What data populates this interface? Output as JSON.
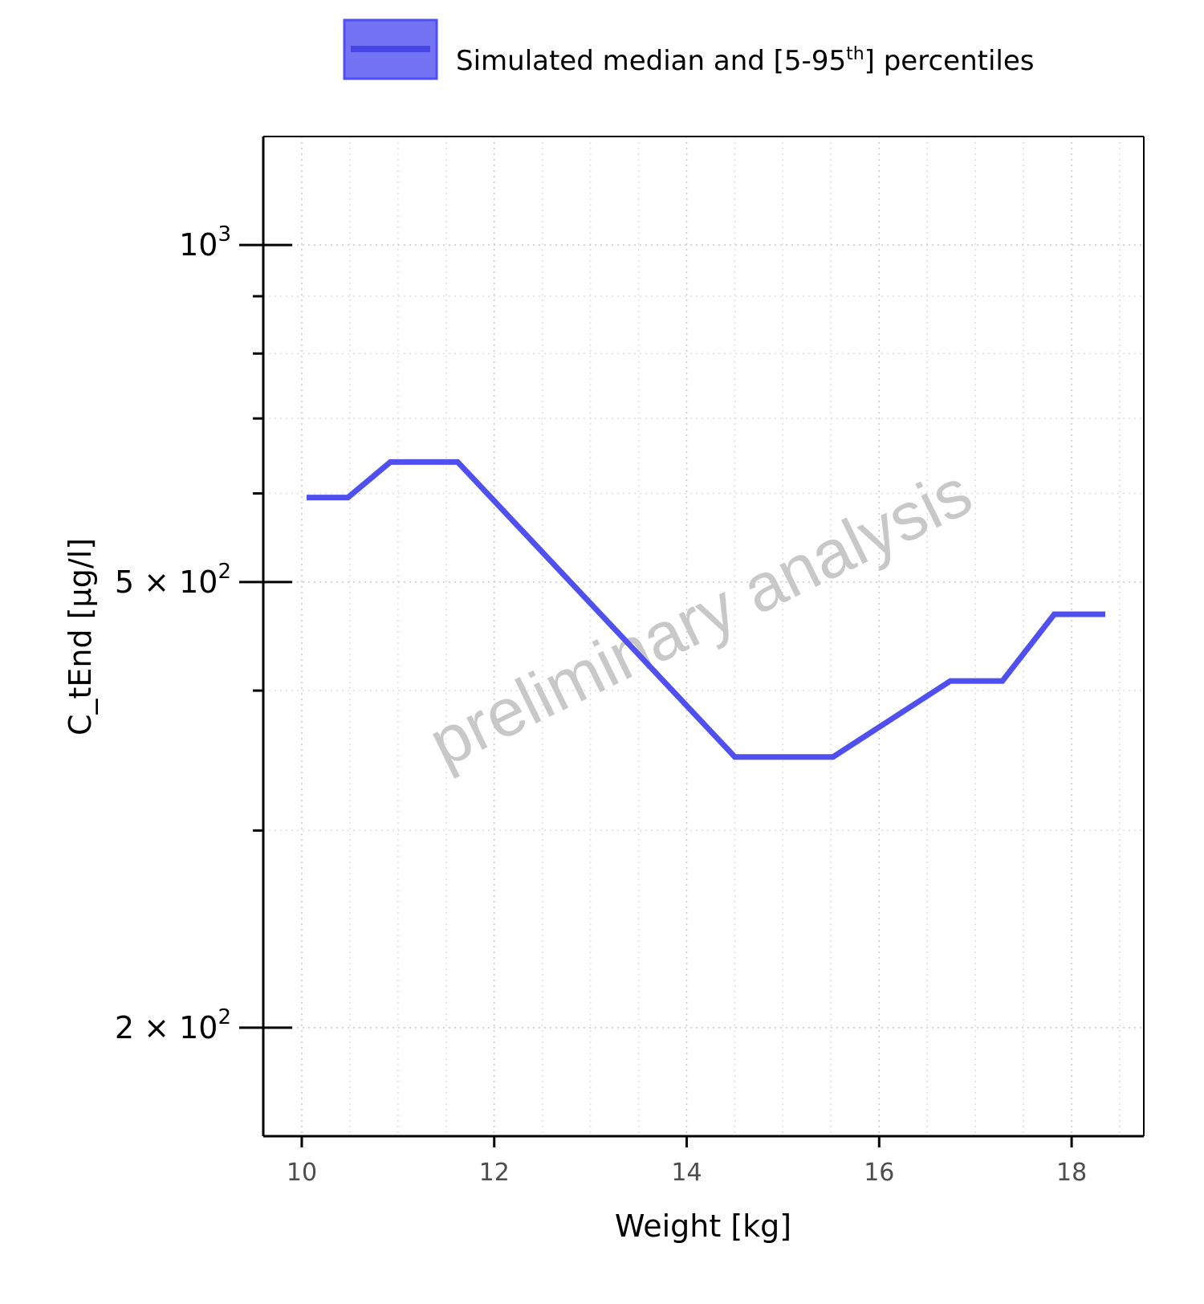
{
  "chart_data": {
    "type": "line",
    "xlabel": "Weight [kg]",
    "ylabel": "C_tEnd [µg/l]",
    "xlim": [
      9.6,
      18.75
    ],
    "ylim": [
      160,
      1250
    ],
    "y_scale": "log",
    "grid": true,
    "x_ticks": [
      10,
      12,
      14,
      16,
      18
    ],
    "y_ticks": [
      {
        "value": 200,
        "mantissa": "2",
        "base": "10",
        "exp": "2"
      },
      {
        "value": 500,
        "mantissa": "5",
        "base": "10",
        "exp": "2"
      },
      {
        "value": 1000,
        "mantissa": "",
        "base": "10",
        "exp": "3"
      }
    ],
    "legend": {
      "position": "top",
      "prefix": "Simulated median and [5-95",
      "superscript": "th",
      "suffix": "] percentiles"
    },
    "series": [
      {
        "color": "#5050f0",
        "x": [
          10.05,
          10.48,
          10.92,
          11.62,
          14.5,
          15.52,
          16.74,
          17.28,
          17.82,
          18.35
        ],
        "y": [
          595,
          595,
          640,
          640,
          349,
          349,
          408,
          408,
          468,
          468
        ]
      }
    ],
    "watermark": "preliminary analysis"
  }
}
